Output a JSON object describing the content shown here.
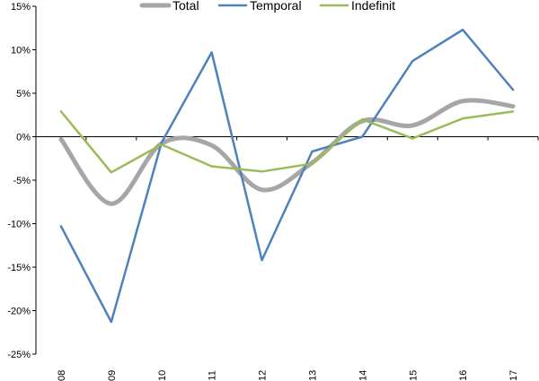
{
  "chart_data": {
    "type": "line",
    "title": "",
    "xlabel": "",
    "ylabel": "",
    "categories": [
      "2008",
      "2009",
      "2010",
      "2011",
      "2012",
      "2013",
      "2014",
      "2015",
      "2016",
      "2017"
    ],
    "ylim": [
      -25,
      15
    ],
    "yticks": [
      -25,
      -20,
      -15,
      -10,
      -5,
      0,
      5,
      10,
      15
    ],
    "ytick_labels": [
      "-25%",
      "-20%",
      "-15%",
      "-10%",
      "-5%",
      "0%",
      "5%",
      "10%",
      "15%"
    ],
    "grid": false,
    "legend_position": "top",
    "series": [
      {
        "name": "Total",
        "color": "#A6A6A6",
        "smooth": true,
        "values": [
          -0.3,
          -7.7,
          -0.8,
          -1.0,
          -6.1,
          -3.0,
          1.8,
          1.3,
          4.1,
          3.5
        ]
      },
      {
        "name": "Temporal",
        "color": "#4F81BD",
        "smooth": false,
        "values": [
          -10.3,
          -21.3,
          -0.7,
          9.7,
          -14.2,
          -1.7,
          0.0,
          8.7,
          12.3,
          5.4
        ]
      },
      {
        "name": "Indefinit",
        "color": "#9BBB59",
        "smooth": false,
        "values": [
          2.9,
          -4.1,
          -0.9,
          -3.4,
          -4.0,
          -3.1,
          2.0,
          -0.2,
          2.1,
          2.9
        ]
      }
    ]
  }
}
